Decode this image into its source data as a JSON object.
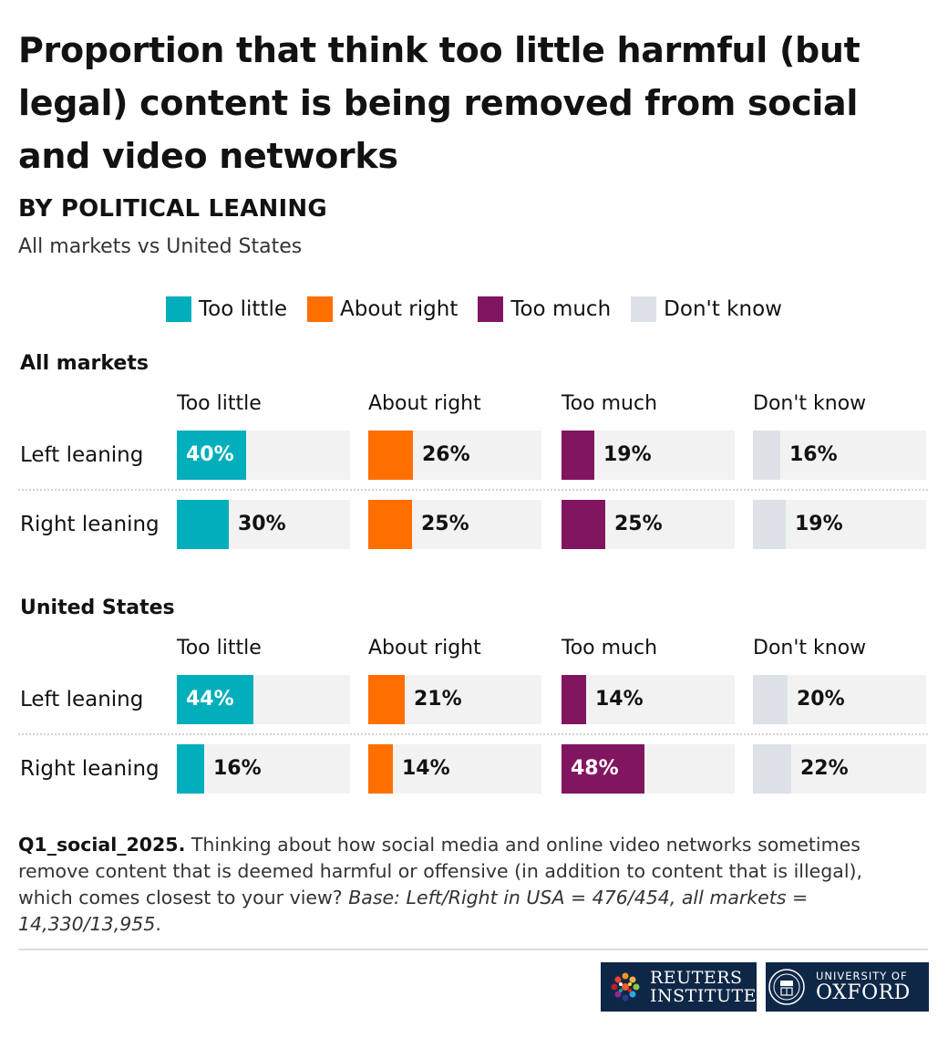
{
  "title": "Proportion that think too little harmful (but legal) content is being removed from social and video networks",
  "subtitle": "BY POLITICAL LEANING",
  "subsubtitle": "All markets vs United States",
  "colors": {
    "too_little": "#00aebc",
    "about_right": "#ff6f00",
    "too_much": "#821560",
    "dont_know": "#dde1e8",
    "track": "#f2f2f2"
  },
  "legend": [
    {
      "label": "Too little",
      "color": "#00aebc"
    },
    {
      "label": "About right",
      "color": "#ff6f00"
    },
    {
      "label": "Too much",
      "color": "#821560"
    },
    {
      "label": "Don't know",
      "color": "#dde1e8"
    }
  ],
  "chart_data": {
    "type": "bar",
    "orientation": "horizontal",
    "xlim": [
      0,
      100
    ],
    "unit": "%",
    "categories": [
      "Too little",
      "About right",
      "Too much",
      "Don't know"
    ],
    "panels": [
      {
        "title": "All markets",
        "rows": [
          {
            "label": "Left leaning",
            "values": [
              40,
              26,
              19,
              16
            ]
          },
          {
            "label": "Right leaning",
            "values": [
              30,
              25,
              25,
              19
            ]
          }
        ]
      },
      {
        "title": "United States",
        "rows": [
          {
            "label": "Left leaning",
            "values": [
              44,
              21,
              14,
              20
            ]
          },
          {
            "label": "Right leaning",
            "values": [
              16,
              14,
              48,
              22
            ]
          }
        ]
      }
    ]
  },
  "note": {
    "code": "Q1_social_2025.",
    "text": " Thinking about how social media and online video networks sometimes remove content that is deemed harmful or offensive (in addition to content that is illegal), which comes closest to your view? ",
    "base": "Base: Left/Right in USA = 476/454, all markets = 14,330/13,955",
    "end": "."
  },
  "logos": {
    "reuters_line1": "REUTERS",
    "reuters_line2": "INSTITUTE",
    "oxford_line1": "UNIVERSITY OF",
    "oxford_line2": "OXFORD"
  }
}
